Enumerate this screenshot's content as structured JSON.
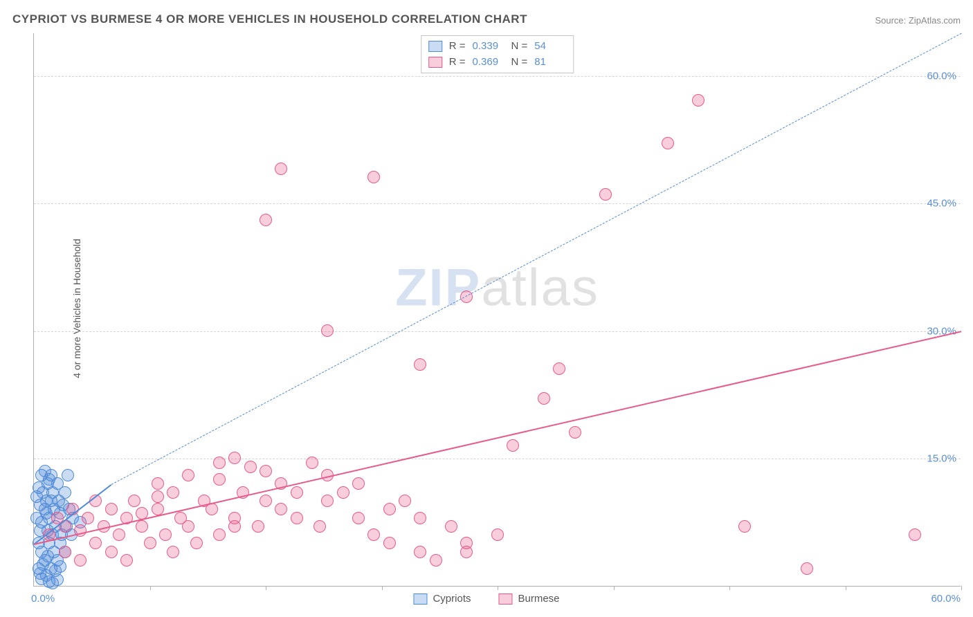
{
  "title": "CYPRIOT VS BURMESE 4 OR MORE VEHICLES IN HOUSEHOLD CORRELATION CHART",
  "source_label": "Source: ",
  "source_name": "ZipAtlas.com",
  "ylabel": "4 or more Vehicles in Household",
  "watermark_a": "ZIP",
  "watermark_b": "atlas",
  "chart": {
    "type": "scatter",
    "background_color": "#ffffff",
    "grid_color": "#d5d5d5",
    "axis_color": "#b0b0b0",
    "label_color": "#5b8fd6",
    "xlim": [
      0,
      60
    ],
    "ylim": [
      0,
      65
    ],
    "x_origin_label": "0.0%",
    "x_max_label": "60.0%",
    "yticks": [
      {
        "v": 15,
        "label": "15.0%"
      },
      {
        "v": 30,
        "label": "30.0%"
      },
      {
        "v": 45,
        "label": "45.0%"
      },
      {
        "v": 60,
        "label": "60.0%"
      }
    ],
    "xtick_positions": [
      7.5,
      15,
      22.5,
      30,
      37.5,
      45,
      52.5,
      60
    ],
    "marker_radius": 9,
    "marker_border_width": 1.5,
    "marker_fill_opacity": 0.3,
    "series": [
      {
        "name": "Cypriots",
        "color": "#4f8ad8",
        "fill": "rgba(79,138,216,0.30)",
        "r_label": "R =",
        "r_value": "0.339",
        "n_label": "N =",
        "n_value": "54",
        "trend": {
          "x1": 0,
          "y1": 5,
          "x2": 5,
          "y2": 12,
          "width": 2.5,
          "dash": false,
          "ext_x2": 60,
          "ext_y2": 65,
          "ext_dash": true
        },
        "points": [
          [
            0.3,
            5
          ],
          [
            0.4,
            6.5
          ],
          [
            0.5,
            7.5
          ],
          [
            0.5,
            4
          ],
          [
            0.7,
            9
          ],
          [
            0.7,
            3
          ],
          [
            0.8,
            10
          ],
          [
            0.9,
            12
          ],
          [
            1.0,
            8
          ],
          [
            1.0,
            5
          ],
          [
            1.1,
            13
          ],
          [
            1.2,
            11
          ],
          [
            1.2,
            6
          ],
          [
            1.3,
            9
          ],
          [
            1.3,
            4
          ],
          [
            1.4,
            7
          ],
          [
            1.5,
            12
          ],
          [
            1.5,
            3
          ],
          [
            1.6,
            10
          ],
          [
            1.7,
            8.5
          ],
          [
            1.7,
            5
          ],
          [
            1.8,
            6
          ],
          [
            1.9,
            9.5
          ],
          [
            2.0,
            11
          ],
          [
            2.0,
            4
          ],
          [
            2.1,
            7
          ],
          [
            2.2,
            13
          ],
          [
            2.3,
            9
          ],
          [
            2.4,
            6
          ],
          [
            2.5,
            8
          ],
          [
            0.3,
            2
          ],
          [
            0.4,
            1.5
          ],
          [
            0.5,
            0.8
          ],
          [
            0.6,
            2.5
          ],
          [
            0.8,
            1.2
          ],
          [
            0.9,
            3.5
          ],
          [
            1.0,
            0.5
          ],
          [
            1.1,
            2
          ],
          [
            1.2,
            0.3
          ],
          [
            1.4,
            1.8
          ],
          [
            1.5,
            0.7
          ],
          [
            1.7,
            2.3
          ],
          [
            0.2,
            10.5
          ],
          [
            0.2,
            8
          ],
          [
            0.3,
            11.5
          ],
          [
            0.4,
            9.5
          ],
          [
            0.5,
            13
          ],
          [
            0.6,
            11
          ],
          [
            0.7,
            13.5
          ],
          [
            0.8,
            8.5
          ],
          [
            0.9,
            6.5
          ],
          [
            1.0,
            12.5
          ],
          [
            1.1,
            10
          ],
          [
            3.0,
            7.5
          ]
        ]
      },
      {
        "name": "Burmese",
        "color": "#e85a8a",
        "fill": "rgba(232,90,138,0.30)",
        "r_label": "R =",
        "r_value": "0.369",
        "n_label": "N =",
        "n_value": "81",
        "trend": {
          "x1": 0,
          "y1": 5,
          "x2": 60,
          "y2": 30,
          "width": 2.5,
          "dash": false
        },
        "points": [
          [
            1,
            6
          ],
          [
            1.5,
            8
          ],
          [
            2,
            7
          ],
          [
            2,
            4
          ],
          [
            2.5,
            9
          ],
          [
            3,
            6.5
          ],
          [
            3,
            3
          ],
          [
            3.5,
            8
          ],
          [
            4,
            5
          ],
          [
            4,
            10
          ],
          [
            4.5,
            7
          ],
          [
            5,
            9
          ],
          [
            5,
            4
          ],
          [
            5.5,
            6
          ],
          [
            6,
            8
          ],
          [
            6,
            3
          ],
          [
            6.5,
            10
          ],
          [
            7,
            7
          ],
          [
            7.5,
            5
          ],
          [
            8,
            9
          ],
          [
            8,
            12
          ],
          [
            8.5,
            6
          ],
          [
            9,
            11
          ],
          [
            9,
            4
          ],
          [
            9.5,
            8
          ],
          [
            10,
            7
          ],
          [
            10,
            13
          ],
          [
            10.5,
            5
          ],
          [
            11,
            10
          ],
          [
            11.5,
            9
          ],
          [
            12,
            12.5
          ],
          [
            12,
            6
          ],
          [
            13,
            15
          ],
          [
            13,
            8
          ],
          [
            13.5,
            11
          ],
          [
            14,
            14
          ],
          [
            14.5,
            7
          ],
          [
            15,
            10
          ],
          [
            15,
            13.5
          ],
          [
            16,
            9
          ],
          [
            16,
            12
          ],
          [
            17,
            8
          ],
          [
            17,
            11
          ],
          [
            18,
            14.5
          ],
          [
            18.5,
            7
          ],
          [
            19,
            10
          ],
          [
            19,
            13
          ],
          [
            20,
            11
          ],
          [
            21,
            8
          ],
          [
            21,
            12
          ],
          [
            22,
            6
          ],
          [
            23,
            9
          ],
          [
            23,
            5
          ],
          [
            24,
            10
          ],
          [
            25,
            4
          ],
          [
            25,
            8
          ],
          [
            26,
            3
          ],
          [
            27,
            7
          ],
          [
            28,
            5
          ],
          [
            28,
            4
          ],
          [
            30,
            6
          ],
          [
            31,
            16.5
          ],
          [
            19,
            30
          ],
          [
            25,
            26
          ],
          [
            28,
            34
          ],
          [
            33,
            22
          ],
          [
            34,
            25.5
          ],
          [
            37,
            46
          ],
          [
            41,
            52
          ],
          [
            43,
            57
          ],
          [
            16,
            49
          ],
          [
            7,
            8.5
          ],
          [
            8,
            10.5
          ],
          [
            12,
            14.5
          ],
          [
            13,
            7
          ],
          [
            46,
            7
          ],
          [
            50,
            2
          ],
          [
            57,
            6
          ],
          [
            22,
            48
          ],
          [
            35,
            18
          ],
          [
            15,
            43
          ]
        ]
      }
    ]
  },
  "legend": {
    "item1": "Cypriots",
    "item2": "Burmese"
  }
}
